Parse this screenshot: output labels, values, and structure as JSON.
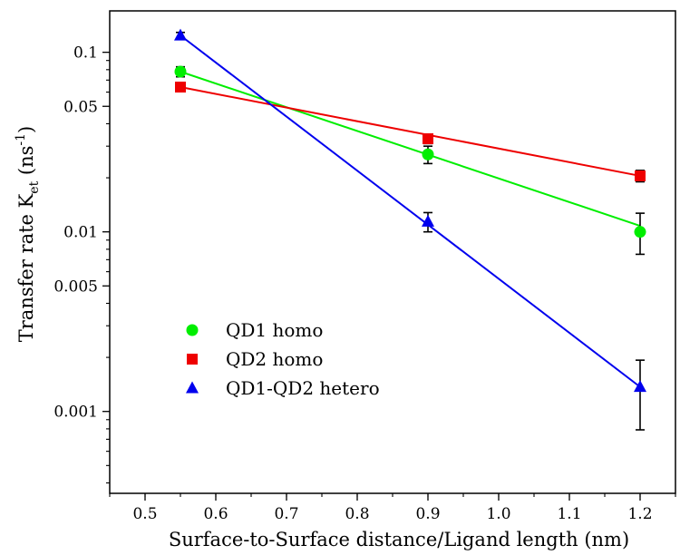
{
  "chart_data": {
    "type": "scatter",
    "title": "",
    "xlabel": "Surface-to-Surface distance/Ligand length (nm)",
    "ylabel": {
      "main": "Transfer rate K",
      "subscript": "et",
      "unit_open": " (ns",
      "superscript": "-1",
      "unit_close": ")"
    },
    "xlim": [
      0.45,
      1.25
    ],
    "ylim": [
      0.00035,
      0.17
    ],
    "yscale": "log",
    "grid": false,
    "legend_position": "bottom-left",
    "x_ticks": [
      {
        "value": 0.5,
        "label": "0.5"
      },
      {
        "value": 0.6,
        "label": "0.6"
      },
      {
        "value": 0.7,
        "label": "0.7"
      },
      {
        "value": 0.8,
        "label": "0.8"
      },
      {
        "value": 0.9,
        "label": "0.9"
      },
      {
        "value": 1.0,
        "label": "1.0"
      },
      {
        "value": 1.1,
        "label": "1.1"
      },
      {
        "value": 1.2,
        "label": "1.2"
      }
    ],
    "y_ticks": [
      {
        "value": 0.1,
        "label": "0.1"
      },
      {
        "value": 0.05,
        "label": "0.05"
      },
      {
        "value": 0.01,
        "label": "0.01"
      },
      {
        "value": 0.005,
        "label": "0.005"
      },
      {
        "value": 0.001,
        "label": "0.001"
      }
    ],
    "series": [
      {
        "name": "QD1 homo",
        "color": "#00ee00",
        "marker": "circle",
        "points": [
          {
            "x": 0.55,
            "y": 0.078,
            "yerr_low": 0.073,
            "yerr_high": 0.083
          },
          {
            "x": 0.9,
            "y": 0.027,
            "yerr_low": 0.024,
            "yerr_high": 0.03
          },
          {
            "x": 1.2,
            "y": 0.01,
            "yerr_low": 0.0075,
            "yerr_high": 0.0127
          }
        ],
        "fit": [
          [
            0.55,
            0.078
          ],
          [
            1.2,
            0.0108
          ]
        ]
      },
      {
        "name": "QD2 homo",
        "color": "#ee0000",
        "marker": "square",
        "points": [
          {
            "x": 0.55,
            "y": 0.064,
            "yerr_low": 0.061,
            "yerr_high": 0.067
          },
          {
            "x": 0.9,
            "y": 0.033,
            "yerr_low": 0.031,
            "yerr_high": 0.035
          },
          {
            "x": 1.2,
            "y": 0.0205,
            "yerr_low": 0.019,
            "yerr_high": 0.022
          }
        ],
        "fit": [
          [
            0.55,
            0.064
          ],
          [
            1.2,
            0.0205
          ]
        ]
      },
      {
        "name": "QD1-QD2 hetero",
        "color": "#0000ee",
        "marker": "triangle",
        "points": [
          {
            "x": 0.55,
            "y": 0.124,
            "yerr_low": 0.119,
            "yerr_high": 0.129
          },
          {
            "x": 0.9,
            "y": 0.0114,
            "yerr_low": 0.01,
            "yerr_high": 0.0128
          },
          {
            "x": 1.2,
            "y": 0.00137,
            "yerr_low": 0.00079,
            "yerr_high": 0.00193
          }
        ],
        "fit": [
          [
            0.55,
            0.124
          ],
          [
            1.2,
            0.00137
          ]
        ]
      }
    ]
  }
}
